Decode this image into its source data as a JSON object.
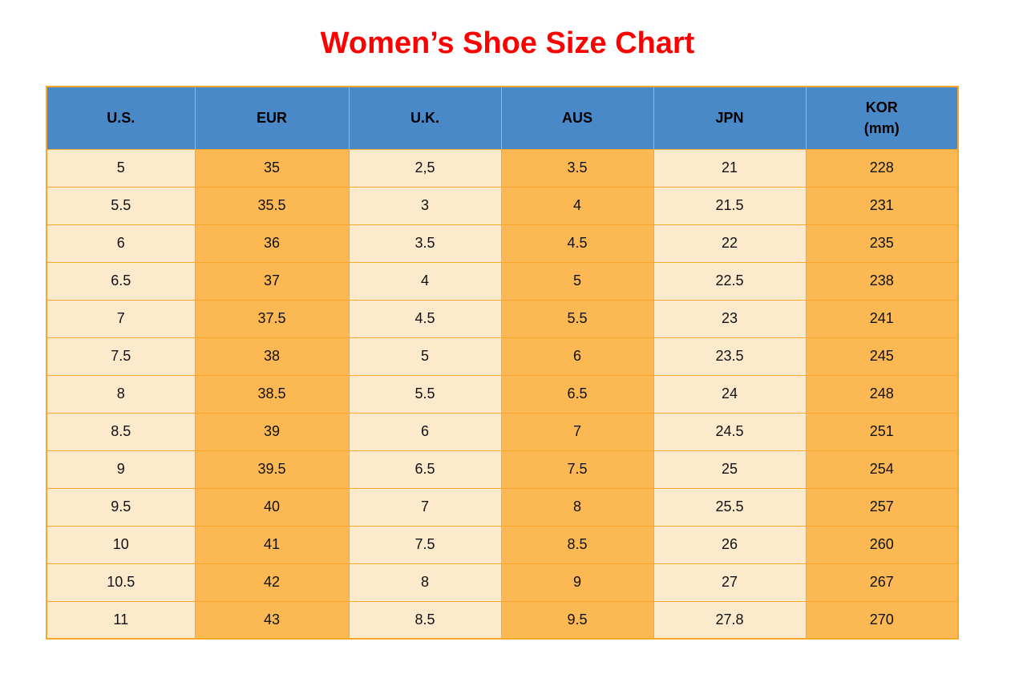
{
  "title": "Women’s Shoe Size Chart",
  "colors": {
    "title_red": "#fe0000",
    "header_blue": "#4a89c8",
    "cell_cream": "#fdeacc",
    "cell_orange": "#fbb853",
    "grid_border_orange": "#f9a72b",
    "text": "#111111"
  },
  "chart_data": {
    "type": "table",
    "title": "Women’s Shoe Size Chart",
    "columns": [
      "U.S.",
      "EUR",
      "U.K.",
      "AUS",
      "JPN",
      "KOR (mm)"
    ],
    "header_lines": [
      [
        "U.S."
      ],
      [
        "EUR"
      ],
      [
        "U.K."
      ],
      [
        "AUS"
      ],
      [
        "JPN"
      ],
      [
        "KOR",
        "(mm)"
      ]
    ],
    "column_fill_pattern": [
      "cream",
      "orange",
      "cream",
      "orange",
      "cream",
      "orange"
    ],
    "rows": [
      [
        "5",
        "35",
        "2,5",
        "3.5",
        "21",
        "228"
      ],
      [
        "5.5",
        "35.5",
        "3",
        "4",
        "21.5",
        "231"
      ],
      [
        "6",
        "36",
        "3.5",
        "4.5",
        "22",
        "235"
      ],
      [
        "6.5",
        "37",
        "4",
        "5",
        "22.5",
        "238"
      ],
      [
        "7",
        "37.5",
        "4.5",
        "5.5",
        "23",
        "241"
      ],
      [
        "7.5",
        "38",
        "5",
        "6",
        "23.5",
        "245"
      ],
      [
        "8",
        "38.5",
        "5.5",
        "6.5",
        "24",
        "248"
      ],
      [
        "8.5",
        "39",
        "6",
        "7",
        "24.5",
        "251"
      ],
      [
        "9",
        "39.5",
        "6.5",
        "7.5",
        "25",
        "254"
      ],
      [
        "9.5",
        "40",
        "7",
        "8",
        "25.5",
        "257"
      ],
      [
        "10",
        "41",
        "7.5",
        "8.5",
        "26",
        "260"
      ],
      [
        "10.5",
        "42",
        "8",
        "9",
        "27",
        "267"
      ],
      [
        "11",
        "43",
        "8.5",
        "9.5",
        "27.8",
        "270"
      ]
    ]
  }
}
